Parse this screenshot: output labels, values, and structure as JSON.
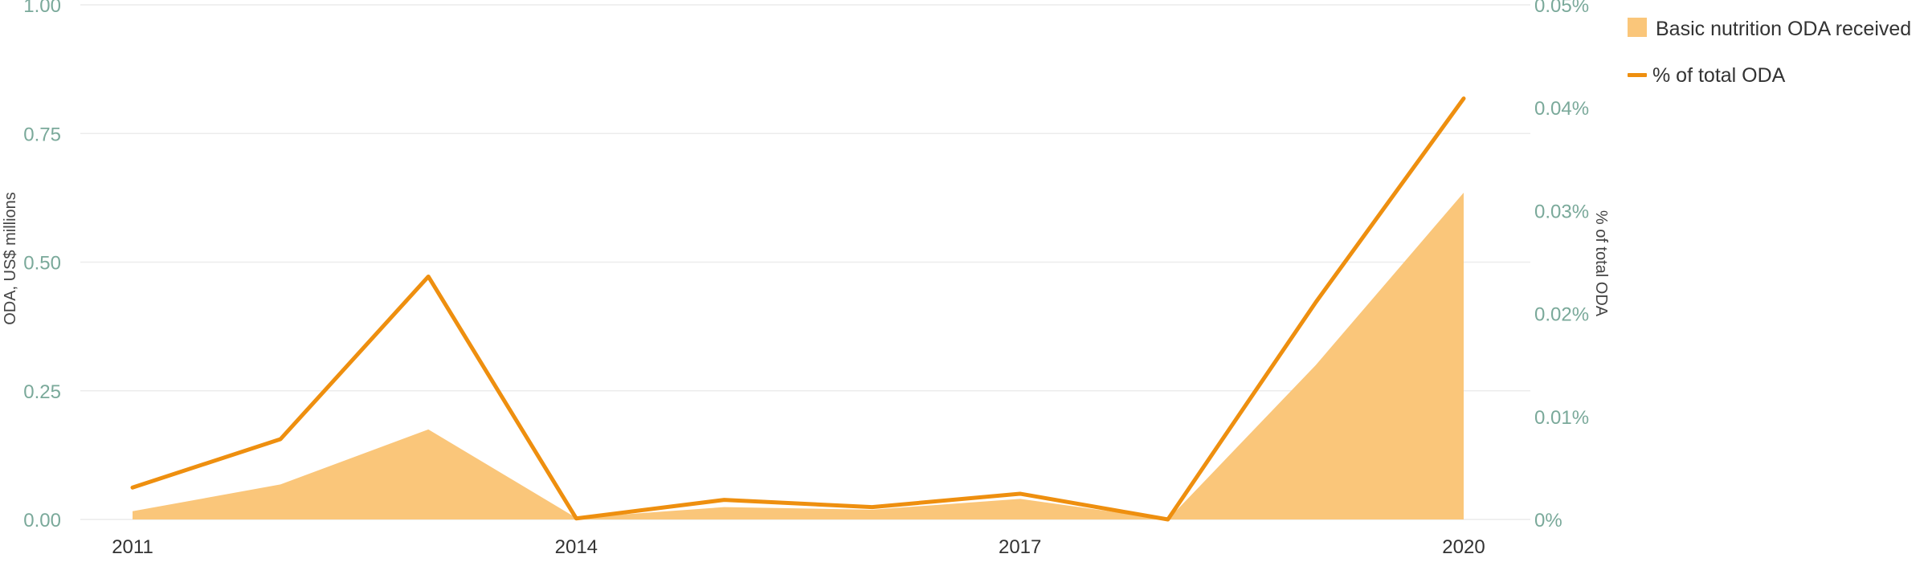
{
  "chart_data": {
    "type": "area",
    "x": [
      2011,
      2012,
      2013,
      2014,
      2015,
      2016,
      2017,
      2018,
      2019,
      2020
    ],
    "x_tick_labels": [
      "2011",
      "2014",
      "2017",
      "2020"
    ],
    "series": [
      {
        "name": "Basic nutrition ODA received",
        "type": "area",
        "axis": "left",
        "color": "#fac67a",
        "values": [
          0.016,
          0.068,
          0.175,
          0.003,
          0.024,
          0.019,
          0.04,
          0.0,
          0.3,
          0.635
        ]
      },
      {
        "name": "% of total ODA",
        "type": "line",
        "axis": "right",
        "color": "#ee8f0f",
        "values": [
          0.0031,
          0.0078,
          0.0236,
          0.0001,
          0.0019,
          0.0012,
          0.0025,
          0.0,
          0.0211,
          0.0409
        ]
      }
    ],
    "y_left": {
      "label": "ODA, US$ millions",
      "range": [
        0,
        1
      ],
      "ticks": [
        0,
        0.25,
        0.5,
        0.75,
        1
      ],
      "tick_labels": [
        "0.00",
        "0.25",
        "0.50",
        "0.75",
        "1.00"
      ]
    },
    "y_right": {
      "label": "% of total ODA",
      "range": [
        0,
        0.05
      ],
      "ticks": [
        0,
        0.01,
        0.02,
        0.03,
        0.04,
        0.05
      ],
      "tick_labels": [
        "0%",
        "0.01%",
        "0.02%",
        "0.03%",
        "0.04%",
        "0.05%"
      ]
    },
    "grid": true,
    "legend_position": "top-right"
  }
}
